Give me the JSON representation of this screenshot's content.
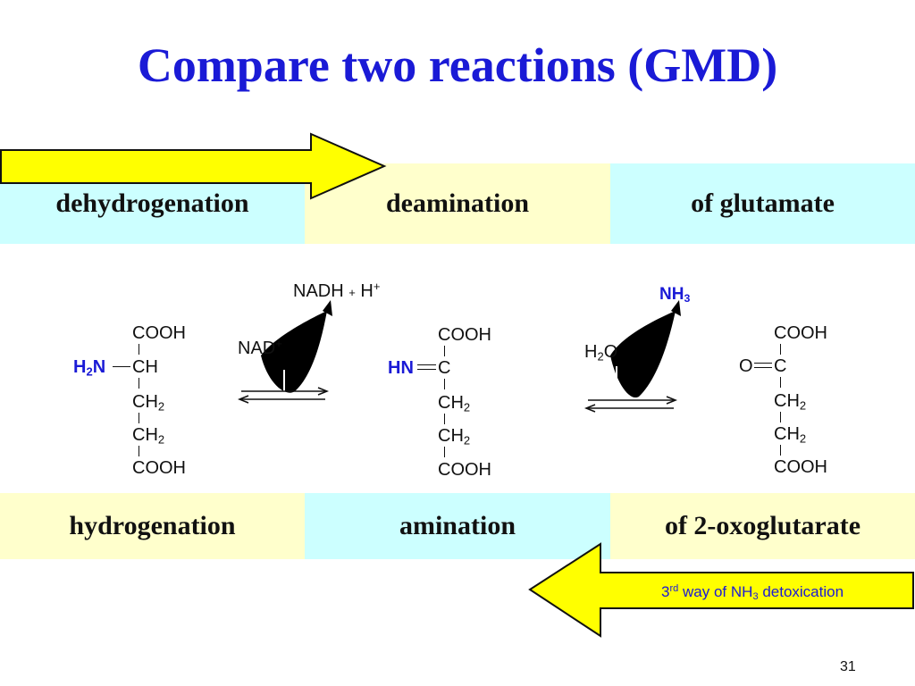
{
  "slide": {
    "title": "Compare two reactions (GMD)",
    "page_number": "31"
  },
  "top_row": {
    "cell1": "dehydrogenation",
    "cell2": "deamination",
    "cell3": "of  glutamate"
  },
  "bottom_row": {
    "cell1": "hydrogenation",
    "cell2": "amination",
    "cell3": "of  2-oxoglutarate"
  },
  "glutamate": {
    "cooh_top": "COOH",
    "amino_group": "H",
    "amino_sub": "2",
    "amino_n": "N",
    "ch": "CH",
    "ch2_a": "CH",
    "ch2_a_sub": "2",
    "ch2_b": "CH",
    "ch2_b_sub": "2",
    "cooh_bottom": "COOH"
  },
  "iminoglutarate": {
    "cooh_top": "COOH",
    "imino_group": "HN",
    "c": "C",
    "ch2_a": "CH",
    "ch2_a_sub": "2",
    "ch2_b": "CH",
    "ch2_b_sub": "2",
    "cooh_bottom": "COOH"
  },
  "oxoglutarate": {
    "cooh_top": "COOH",
    "oxo_group": "O",
    "c": "C",
    "ch2_a": "CH",
    "ch2_a_sub": "2",
    "ch2_b": "CH",
    "ch2_b_sub": "2",
    "cooh_bottom": "COOH"
  },
  "reaction1": {
    "cofactor_in": "NAD",
    "cofactor_in_sup": "+",
    "product": "NADH",
    "plus": "+",
    "proton": "H",
    "proton_sup": "+"
  },
  "reaction2": {
    "water": "H",
    "water_sub": "2",
    "water_o": "O",
    "ammonia": "NH",
    "ammonia_sub": "3"
  },
  "detox": {
    "prefix": "3",
    "prefix_sup": "rd",
    "middle": " way of NH",
    "sub": "3",
    "suffix": " detoxication"
  },
  "colors": {
    "title_blue": "#1a1ad6",
    "cyan_cell": "#ccffff",
    "cream_cell": "#ffffcc",
    "arrow_yellow": "#ffff00"
  },
  "icons": [
    "forward-arrow-icon",
    "backward-arrow-icon",
    "curved-arrow-icon",
    "equilibrium-arrow-icon"
  ]
}
